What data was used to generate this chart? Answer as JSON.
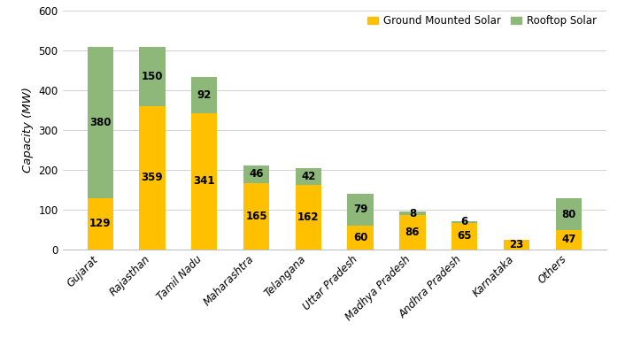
{
  "categories": [
    "Gujarat",
    "Rajasthan",
    "Tamil Nadu",
    "Maharashtra",
    "Telangana",
    "Uttar Pradesh",
    "Madhya Pradesh",
    "Andhra Pradesh",
    "Karnataka",
    "Others"
  ],
  "ground_mounted": [
    129,
    359,
    341,
    165,
    162,
    60,
    86,
    65,
    23,
    47
  ],
  "rooftop": [
    380,
    150,
    92,
    46,
    42,
    79,
    8,
    6,
    0,
    80
  ],
  "ground_color": "#FFC000",
  "rooftop_color": "#8DB87A",
  "ylabel": "Capacity (MW)",
  "ylim": [
    0,
    600
  ],
  "yticks": [
    0,
    100,
    200,
    300,
    400,
    500,
    600
  ],
  "legend_ground": "Ground Mounted Solar",
  "legend_rooftop": "Rooftop Solar",
  "bar_width": 0.5,
  "background_color": "#FFFFFF",
  "label_fontsize": 8.5,
  "tick_fontsize": 8.5,
  "ylabel_fontsize": 9.5
}
